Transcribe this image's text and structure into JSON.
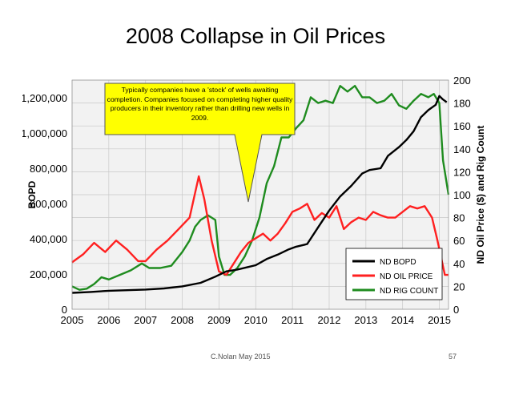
{
  "slide": {
    "title": "2008 Collapse in Oil Prices",
    "footer": "C.Nolan May 2015",
    "page_number": "57"
  },
  "chart_data": {
    "type": "line",
    "ylabel": "BOPD",
    "y2label": "ND Oil Price ($) and Rig Count",
    "xlim": [
      2005,
      2015.25
    ],
    "ylim": [
      0,
      1300000
    ],
    "y2lim": [
      0,
      200
    ],
    "x_ticks": [
      "2005",
      "2006",
      "2007",
      "2008",
      "2009",
      "2010",
      "2011",
      "2012",
      "2013",
      "2014",
      "2015"
    ],
    "y_ticks": [
      "0",
      "200,000",
      "400,000",
      "600,000",
      "800,000",
      "1,000,000",
      "1,200,000"
    ],
    "y_tick_values": [
      0,
      200000,
      400000,
      600000,
      800000,
      1000000,
      1200000
    ],
    "y2_ticks": [
      "0",
      "20",
      "40",
      "60",
      "80",
      "100",
      "120",
      "140",
      "160",
      "180",
      "200"
    ],
    "y2_tick_values": [
      0,
      20,
      40,
      60,
      80,
      100,
      120,
      140,
      160,
      180,
      200
    ],
    "grid": true,
    "legend_position": "bottom-right",
    "annotation": "Typically companies have a 'stock' of wells awaiting completion. Companies focused on completing higher quality producers in their inventory rather than drilling new wells in 2009.",
    "colors": {
      "bopd": "#000000",
      "oil": "#ff2020",
      "rig": "#1f8c1f",
      "callout": "#ffff00",
      "plot_bg": "#f2f2f2"
    },
    "series": [
      {
        "name": "ND BOPD",
        "axis": "left",
        "x": [
          2005.0,
          2005.5,
          2006.0,
          2006.5,
          2007.0,
          2007.5,
          2008.0,
          2008.5,
          2008.9,
          2009.2,
          2009.5,
          2009.8,
          2010.0,
          2010.3,
          2010.6,
          2010.9,
          2011.1,
          2011.4,
          2011.7,
          2012.0,
          2012.3,
          2012.6,
          2012.9,
          2013.1,
          2013.4,
          2013.6,
          2013.9,
          2014.1,
          2014.3,
          2014.5,
          2014.7,
          2014.9,
          2015.0,
          2015.1,
          2015.2
        ],
        "values": [
          93000,
          98000,
          105000,
          108000,
          112000,
          118000,
          130000,
          150000,
          185000,
          215000,
          225000,
          240000,
          250000,
          285000,
          310000,
          340000,
          355000,
          370000,
          465000,
          560000,
          640000,
          700000,
          770000,
          790000,
          800000,
          870000,
          920000,
          960000,
          1010000,
          1090000,
          1130000,
          1160000,
          1210000,
          1190000,
          1175000
        ]
      },
      {
        "name": "ND OIL PRICE",
        "axis": "right",
        "x": [
          2005.0,
          2005.3,
          2005.6,
          2005.9,
          2006.2,
          2006.5,
          2006.8,
          2007.0,
          2007.3,
          2007.6,
          2007.9,
          2008.2,
          2008.45,
          2008.6,
          2008.8,
          2009.0,
          2009.2,
          2009.4,
          2009.6,
          2009.8,
          2010.0,
          2010.2,
          2010.4,
          2010.6,
          2010.8,
          2011.0,
          2011.2,
          2011.4,
          2011.6,
          2011.8,
          2012.0,
          2012.2,
          2012.4,
          2012.6,
          2012.8,
          2013.0,
          2013.2,
          2013.4,
          2013.6,
          2013.8,
          2014.0,
          2014.2,
          2014.4,
          2014.6,
          2014.8,
          2014.95,
          2015.05,
          2015.15,
          2015.25
        ],
        "values": [
          41,
          48,
          58,
          50,
          60,
          52,
          42,
          42,
          52,
          60,
          70,
          80,
          116,
          96,
          60,
          33,
          30,
          40,
          50,
          58,
          62,
          66,
          60,
          66,
          75,
          85,
          88,
          92,
          78,
          84,
          80,
          90,
          70,
          76,
          80,
          78,
          85,
          82,
          80,
          80,
          85,
          90,
          88,
          90,
          80,
          60,
          45,
          30,
          30
        ]
      },
      {
        "name": "ND RIG COUNT",
        "axis": "right",
        "x": [
          2005.0,
          2005.2,
          2005.4,
          2005.6,
          2005.8,
          2006.0,
          2006.3,
          2006.6,
          2006.9,
          2007.1,
          2007.4,
          2007.7,
          2008.0,
          2008.2,
          2008.35,
          2008.5,
          2008.7,
          2008.9,
          2009.0,
          2009.15,
          2009.3,
          2009.5,
          2009.7,
          2009.9,
          2010.1,
          2010.3,
          2010.5,
          2010.7,
          2010.9,
          2011.1,
          2011.3,
          2011.5,
          2011.7,
          2011.9,
          2012.1,
          2012.3,
          2012.5,
          2012.7,
          2012.9,
          2013.1,
          2013.3,
          2013.5,
          2013.7,
          2013.9,
          2014.1,
          2014.3,
          2014.5,
          2014.7,
          2014.85,
          2015.0,
          2015.1,
          2015.2,
          2015.25
        ],
        "values": [
          20,
          17,
          18,
          22,
          28,
          26,
          30,
          34,
          40,
          36,
          36,
          38,
          50,
          60,
          72,
          78,
          82,
          78,
          46,
          30,
          30,
          36,
          46,
          60,
          80,
          110,
          125,
          150,
          150,
          158,
          165,
          185,
          180,
          182,
          180,
          195,
          190,
          195,
          185,
          185,
          180,
          182,
          188,
          178,
          175,
          182,
          188,
          185,
          188,
          180,
          130,
          110,
          100
        ]
      }
    ]
  }
}
